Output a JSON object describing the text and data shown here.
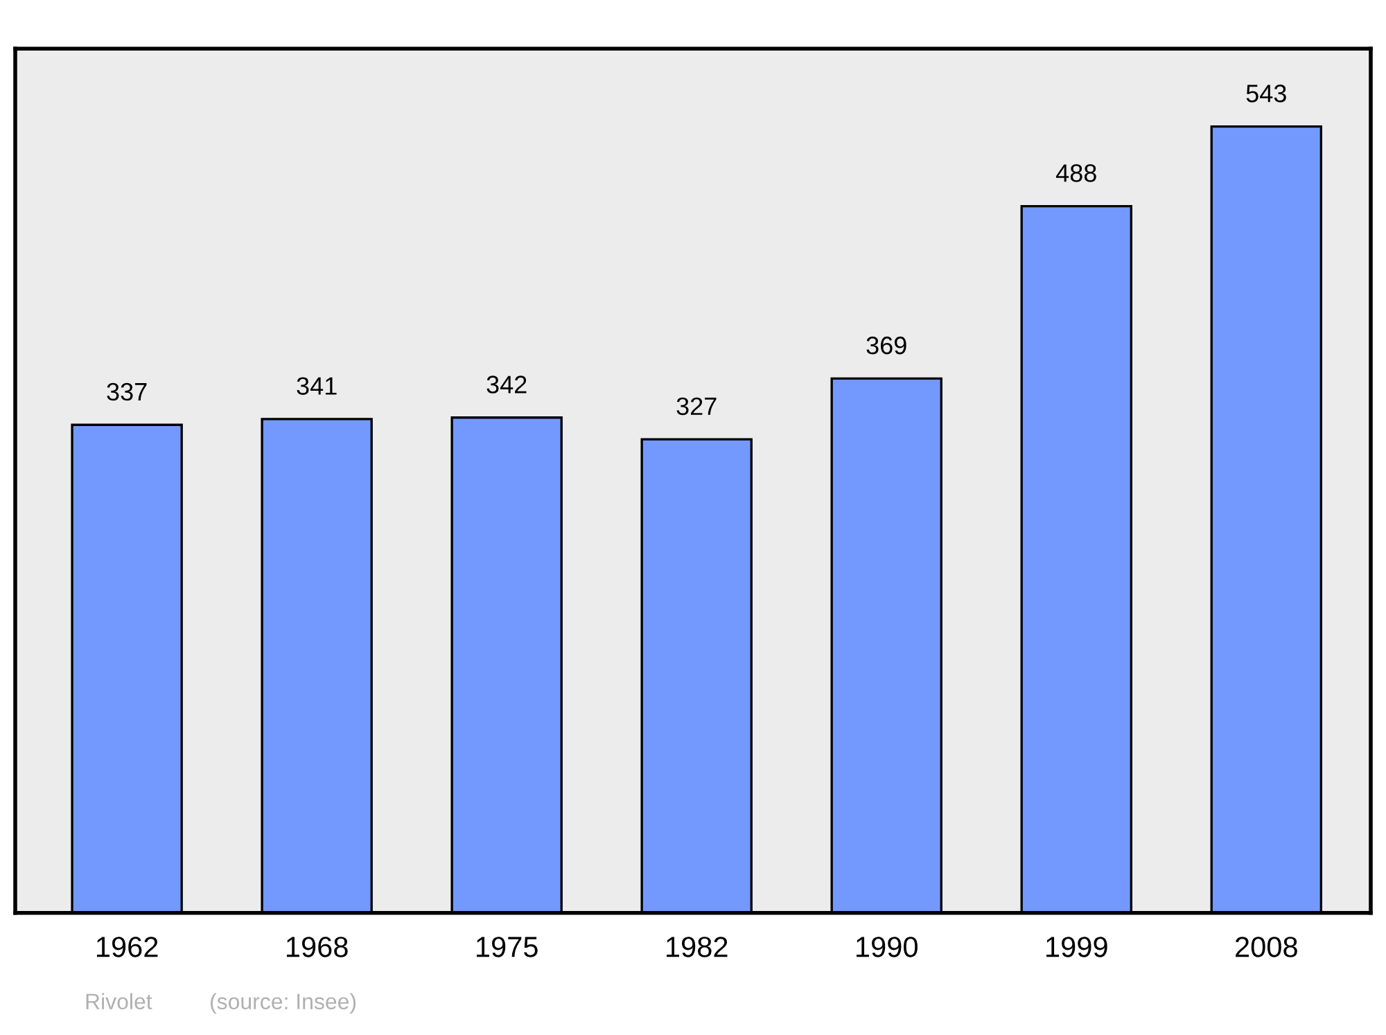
{
  "chart_data": {
    "type": "bar",
    "title": "Rivolet",
    "annotations": [
      "(source: Insee)"
    ],
    "categories": [
      "1962",
      "1968",
      "1975",
      "1982",
      "1990",
      "1999",
      "2008"
    ],
    "values": [
      337,
      341,
      342,
      327,
      369,
      488,
      543
    ],
    "color": "#7399ff",
    "data_labels": true,
    "grid": false,
    "legend": false
  }
}
